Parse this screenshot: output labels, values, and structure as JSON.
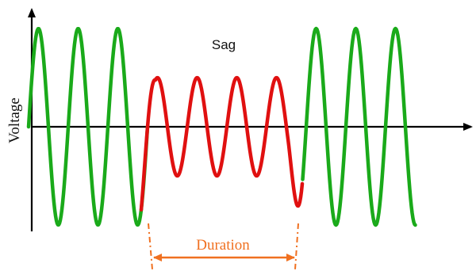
{
  "labels": {
    "sag": "Sag",
    "voltage": "Voltage",
    "duration": "Duration"
  },
  "colors": {
    "normal": "#1aaa1a",
    "sag": "#e01010",
    "duration": "#f07020",
    "axis": "#000000"
  },
  "waveform": {
    "normal_amplitude": 1.0,
    "sag_amplitude": 0.5,
    "cycles_before_sag": 3,
    "cycles_during_sag": 3.75,
    "cycles_after_sag": 3
  }
}
